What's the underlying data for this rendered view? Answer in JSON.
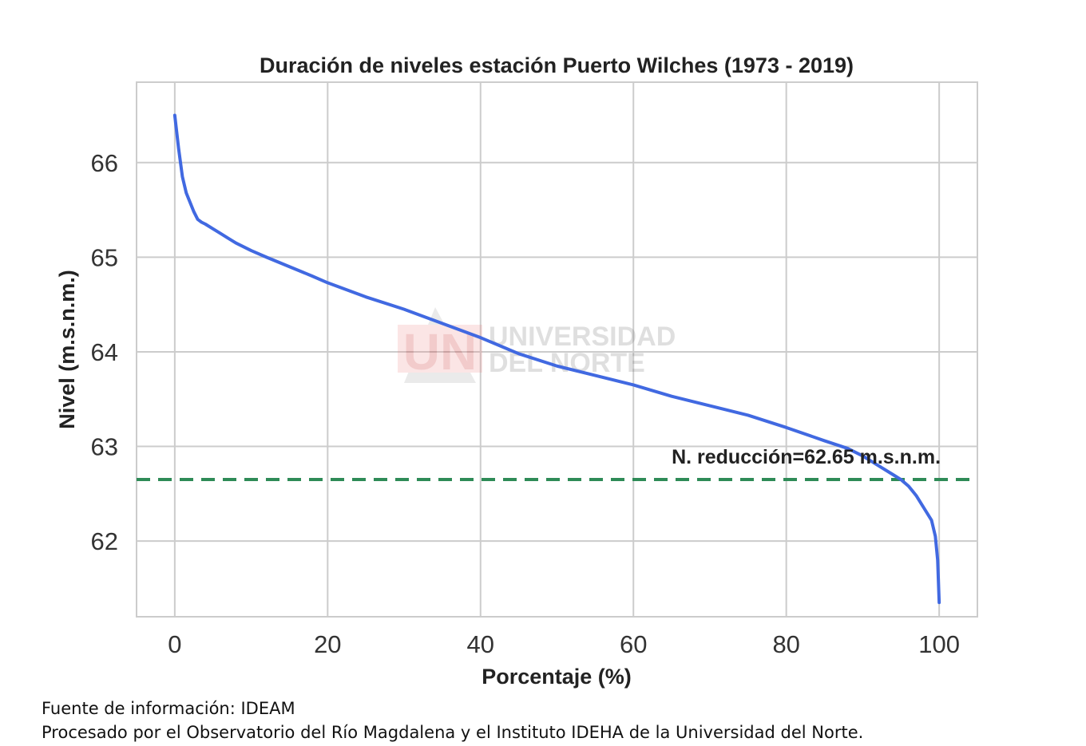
{
  "chart_data": {
    "type": "line",
    "title": "Duración de niveles estación Puerto Wilches (1973 - 2019)",
    "xlabel": "Porcentaje (%)",
    "ylabel": "Nivel (m.s.n.m.)",
    "xlim": [
      -5,
      105
    ],
    "ylim": [
      61.2,
      66.85
    ],
    "x_ticks": [
      0,
      20,
      40,
      60,
      80,
      100
    ],
    "y_ticks": [
      62,
      63,
      64,
      65,
      66
    ],
    "grid": true,
    "series": [
      {
        "color": "#4169e1",
        "x": [
          0,
          0.5,
          1,
          1.5,
          2,
          2.5,
          3,
          3.5,
          4,
          5,
          6,
          7,
          8,
          10,
          12,
          15,
          18,
          20,
          25,
          30,
          35,
          40,
          45,
          50,
          55,
          60,
          65,
          70,
          75,
          80,
          85,
          88,
          90,
          92,
          94,
          95,
          96,
          97,
          98,
          99,
          99.5,
          99.8,
          100
        ],
        "y": [
          66.5,
          66.15,
          65.85,
          65.68,
          65.58,
          65.48,
          65.4,
          65.37,
          65.35,
          65.3,
          65.25,
          65.2,
          65.15,
          65.07,
          65.0,
          64.9,
          64.8,
          64.73,
          64.58,
          64.45,
          64.3,
          64.15,
          63.98,
          63.85,
          63.75,
          63.65,
          63.53,
          63.43,
          63.33,
          63.2,
          63.06,
          62.98,
          62.9,
          62.8,
          62.7,
          62.65,
          62.58,
          62.48,
          62.35,
          62.22,
          62.05,
          61.8,
          61.35
        ]
      },
      {
        "color": "#2e8b57",
        "x": [
          -5,
          105
        ],
        "y": [
          62.65,
          62.65
        ]
      }
    ],
    "annotations": [
      {
        "text": "N. reducción=62.65 m.s.n.m.",
        "x": 65,
        "y": 62.82
      }
    ],
    "watermark": [
      "UNIVERSIDAD",
      "DEL NORTE"
    ]
  },
  "footer": {
    "source": "Fuente de información: IDEAM",
    "processed": "Procesado por el Observatorio del Río Magdalena y el Instituto IDEHA de la Universidad del Norte."
  }
}
